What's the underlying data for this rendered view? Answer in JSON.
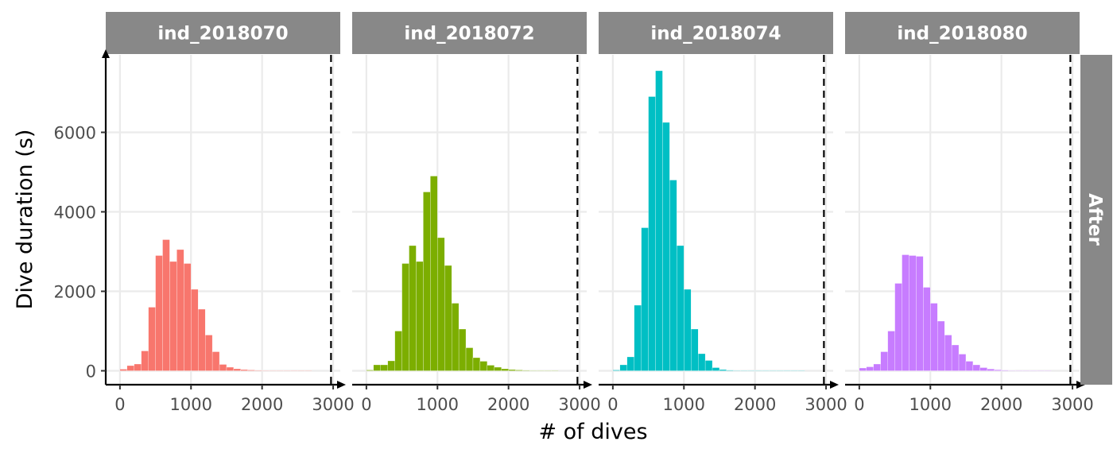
{
  "chart_data": {
    "type": "bar",
    "facet_row_label": "After",
    "xlabel": "# of dives",
    "ylabel": "Dive duration (s)",
    "xlim": [
      -200,
      3100
    ],
    "ylim": [
      -350,
      7950
    ],
    "x_ticks": [
      0,
      1000,
      2000,
      3000
    ],
    "y_ticks": [
      0,
      2000,
      4000,
      6000
    ],
    "vline_x": 2970,
    "grid": true,
    "bin_width": 100,
    "bin_starts": [
      0,
      100,
      200,
      300,
      400,
      500,
      600,
      700,
      800,
      900,
      1000,
      1100,
      1200,
      1300,
      1400,
      1500,
      1600,
      1700,
      1800,
      1900,
      2000,
      2100,
      2200,
      2300,
      2400,
      2500,
      2600
    ],
    "panels": [
      {
        "name": "ind_2018070",
        "color": "#F8766D",
        "values": [
          40,
          130,
          170,
          500,
          1600,
          2900,
          3300,
          2750,
          3050,
          2700,
          2050,
          1550,
          900,
          480,
          160,
          90,
          50,
          30,
          20,
          12,
          8,
          6,
          4,
          3,
          2,
          1,
          1
        ]
      },
      {
        "name": "ind_2018072",
        "color": "#7CAE00",
        "values": [
          20,
          150,
          150,
          250,
          1000,
          2700,
          3150,
          2750,
          4500,
          4900,
          3350,
          2650,
          1700,
          1050,
          580,
          330,
          240,
          140,
          90,
          50,
          30,
          20,
          12,
          8,
          5,
          3,
          2
        ]
      },
      {
        "name": "ind_2018074",
        "color": "#00BFC4",
        "values": [
          20,
          150,
          350,
          1650,
          3600,
          6900,
          7550,
          6250,
          4800,
          3150,
          2050,
          1050,
          430,
          260,
          80,
          30,
          15,
          10,
          8,
          6,
          5,
          4,
          3,
          3,
          2,
          2,
          1
        ]
      },
      {
        "name": "ind_2018080",
        "color": "#C77CFF",
        "values": [
          70,
          100,
          170,
          480,
          1000,
          2200,
          2920,
          2900,
          2880,
          2100,
          1700,
          1250,
          900,
          650,
          420,
          240,
          150,
          80,
          45,
          25,
          15,
          10,
          6,
          4,
          3,
          2,
          1
        ]
      }
    ]
  }
}
